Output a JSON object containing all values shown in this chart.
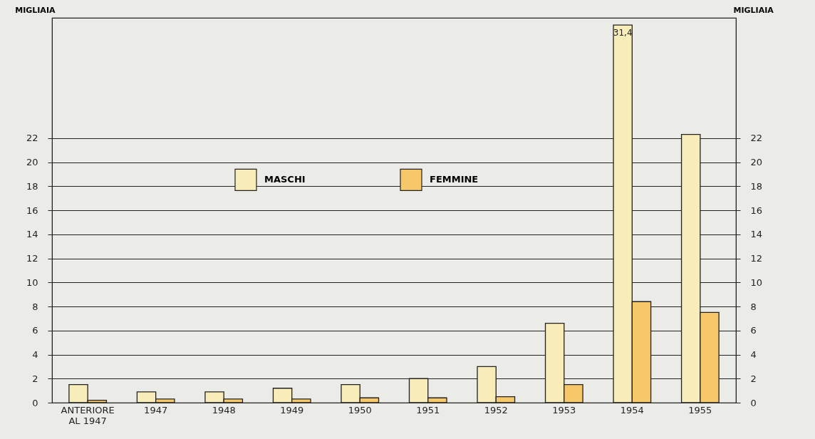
{
  "chart_data": {
    "type": "bar",
    "ylabel": "MIGLIAIA",
    "y2label": "MIGLIAIA",
    "categories": [
      "ANTERIORE AL 1947",
      "1947",
      "1948",
      "1949",
      "1950",
      "1951",
      "1952",
      "1953",
      "1954",
      "1955"
    ],
    "series": [
      {
        "name": "MASCHI",
        "color": "#f8ecb8",
        "values": [
          1.5,
          0.9,
          0.9,
          1.2,
          1.5,
          2.0,
          3.0,
          6.6,
          31.4,
          22.3
        ],
        "value_labels": [
          null,
          null,
          null,
          null,
          null,
          null,
          null,
          null,
          "31,4",
          null
        ]
      },
      {
        "name": "FEMMINE",
        "color": "#f6c86a",
        "values": [
          0.2,
          0.3,
          0.3,
          0.3,
          0.4,
          0.4,
          0.5,
          1.5,
          8.4,
          7.5
        ]
      }
    ],
    "ylim": [
      0,
      32
    ],
    "yticks": [
      0,
      2,
      4,
      6,
      8,
      10,
      12,
      14,
      16,
      18,
      20,
      22
    ],
    "y2lim": [
      0,
      32
    ],
    "y2ticks": [
      0,
      2,
      4,
      6,
      8,
      10,
      12,
      14,
      16,
      18,
      20,
      22
    ],
    "grid": "y",
    "legend": "top"
  }
}
